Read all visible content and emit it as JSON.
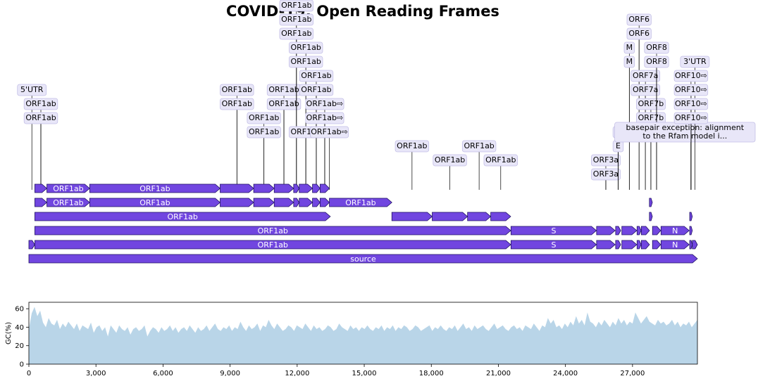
{
  "title": "COVID-19: Open Reading Frames",
  "colors": {
    "feature_fill": "#7146e0",
    "feature_stroke": "#1f1160",
    "label_box": "#e8e6f8",
    "label_box_stroke": "#c3bfe6",
    "gc_fill": "#b9d5e8"
  },
  "genome": {
    "start": 0,
    "end": 29903
  },
  "features": [
    {
      "label": "source",
      "start": 0,
      "end": 29903,
      "level": 0
    },
    {
      "label": "",
      "start": 0,
      "end": 265,
      "level": 1
    },
    {
      "label": "ORF1ab",
      "start": 266,
      "end": 21555,
      "level": 1
    },
    {
      "label": "S",
      "start": 21563,
      "end": 25384,
      "level": 1
    },
    {
      "label": "",
      "start": 25393,
      "end": 26220,
      "level": 1
    },
    {
      "label": "",
      "start": 26245,
      "end": 26472,
      "level": 1
    },
    {
      "label": "",
      "start": 26523,
      "end": 27191,
      "level": 1
    },
    {
      "label": "",
      "start": 27202,
      "end": 27387,
      "level": 1
    },
    {
      "label": "",
      "start": 27394,
      "end": 27759,
      "level": 1
    },
    {
      "label": "",
      "start": 27894,
      "end": 28259,
      "level": 1
    },
    {
      "label": "N",
      "start": 28274,
      "end": 29533,
      "level": 1
    },
    {
      "label": "",
      "start": 29558,
      "end": 29674,
      "level": 1
    },
    {
      "label": "",
      "start": 29675,
      "end": 29903,
      "level": 1
    },
    {
      "label": "ORF1ab",
      "start": 266,
      "end": 21555,
      "level": 2
    },
    {
      "label": "S",
      "start": 21563,
      "end": 25384,
      "level": 2
    },
    {
      "label": "",
      "start": 25393,
      "end": 26220,
      "level": 2
    },
    {
      "label": "",
      "start": 26245,
      "end": 26472,
      "level": 2
    },
    {
      "label": "",
      "start": 26523,
      "end": 27191,
      "level": 2
    },
    {
      "label": "",
      "start": 27202,
      "end": 27387,
      "level": 2
    },
    {
      "label": "",
      "start": 27394,
      "end": 27759,
      "level": 2
    },
    {
      "label": "",
      "start": 27894,
      "end": 28259,
      "level": 2
    },
    {
      "label": "N",
      "start": 28274,
      "end": 29533,
      "level": 2
    },
    {
      "label": "",
      "start": 29558,
      "end": 29674,
      "level": 2
    },
    {
      "label": "ORF1ab",
      "start": 266,
      "end": 13483,
      "level": 3
    },
    {
      "label": "",
      "start": 16236,
      "end": 18039,
      "level": 3
    },
    {
      "label": "",
      "start": 18040,
      "end": 19620,
      "level": 3
    },
    {
      "label": "",
      "start": 19621,
      "end": 20658,
      "level": 3
    },
    {
      "label": "",
      "start": 20659,
      "end": 21552,
      "level": 3
    },
    {
      "label": "",
      "start": 27756,
      "end": 27887,
      "level": 3
    },
    {
      "label": "",
      "start": 29558,
      "end": 29674,
      "level": 3
    },
    {
      "label": "",
      "start": 266,
      "end": 805,
      "level": 4
    },
    {
      "label": "ORF1ab",
      "start": 806,
      "end": 2719,
      "level": 4
    },
    {
      "label": "ORF1ab",
      "start": 2720,
      "end": 8554,
      "level": 4
    },
    {
      "label": "",
      "start": 8555,
      "end": 10054,
      "level": 4
    },
    {
      "label": "",
      "start": 10055,
      "end": 10972,
      "level": 4
    },
    {
      "label": "",
      "start": 10973,
      "end": 11842,
      "level": 4
    },
    {
      "label": "",
      "start": 11843,
      "end": 12091,
      "level": 4
    },
    {
      "label": "",
      "start": 12092,
      "end": 12685,
      "level": 4
    },
    {
      "label": "",
      "start": 12686,
      "end": 13024,
      "level": 4
    },
    {
      "label": "",
      "start": 13025,
      "end": 13441,
      "level": 4
    },
    {
      "label": "ORF1ab",
      "start": 13442,
      "end": 16236,
      "level": 4
    },
    {
      "label": "",
      "start": 27756,
      "end": 27887,
      "level": 4
    },
    {
      "label": "",
      "start": 266,
      "end": 805,
      "level": 5
    },
    {
      "label": "ORF1ab",
      "start": 806,
      "end": 2719,
      "level": 5
    },
    {
      "label": "ORF1ab",
      "start": 2720,
      "end": 8554,
      "level": 5
    },
    {
      "label": "",
      "start": 8555,
      "end": 10054,
      "level": 5
    },
    {
      "label": "",
      "start": 10055,
      "end": 10972,
      "level": 5
    },
    {
      "label": "",
      "start": 10973,
      "end": 11842,
      "level": 5
    },
    {
      "label": "",
      "start": 11843,
      "end": 12091,
      "level": 5
    },
    {
      "label": "",
      "start": 12092,
      "end": 12685,
      "level": 5
    },
    {
      "label": "",
      "start": 12686,
      "end": 13024,
      "level": 5
    },
    {
      "label": "",
      "start": 13025,
      "end": 13441,
      "level": 5
    }
  ],
  "labels": [
    {
      "text": "5'UTR",
      "pos": 133,
      "row": 7
    },
    {
      "text": "ORF1ab",
      "pos": 536,
      "row": 6
    },
    {
      "text": "ORF1ab",
      "pos": 536,
      "row": 5
    },
    {
      "text": "ORF1ab",
      "pos": 9305,
      "row": 7
    },
    {
      "text": "ORF1ab",
      "pos": 9305,
      "row": 6
    },
    {
      "text": "ORF1ab",
      "pos": 10514,
      "row": 5
    },
    {
      "text": "ORF1ab",
      "pos": 10514,
      "row": 4
    },
    {
      "text": "ORF1ab",
      "pos": 11408,
      "row": 7
    },
    {
      "text": "ORF1ab",
      "pos": 11408,
      "row": 6
    },
    {
      "text": "ORF1ab",
      "pos": 11967,
      "row": 13
    },
    {
      "text": "ORF1ab",
      "pos": 11967,
      "row": 12
    },
    {
      "text": "ORF1ab",
      "pos": 11967,
      "row": 11
    },
    {
      "text": "ORF1ab",
      "pos": 12389,
      "row": 10
    },
    {
      "text": "ORF1ab",
      "pos": 12389,
      "row": 9
    },
    {
      "text": "ORF1ab",
      "pos": 12389,
      "row": 4
    },
    {
      "text": "ORF1ab",
      "pos": 12855,
      "row": 8
    },
    {
      "text": "ORF1ab",
      "pos": 12855,
      "row": 7
    },
    {
      "text": "ORF1ab⇨",
      "pos": 13233,
      "row": 6
    },
    {
      "text": "ORF1ab⇨",
      "pos": 13233,
      "row": 5
    },
    {
      "text": "ORF1ab⇨",
      "pos": 13441,
      "row": 4
    },
    {
      "text": "ORF1ab",
      "pos": 17137,
      "row": 3
    },
    {
      "text": "ORF1ab",
      "pos": 18830,
      "row": 2
    },
    {
      "text": "ORF1ab",
      "pos": 20139,
      "row": 3
    },
    {
      "text": "ORF1ab",
      "pos": 21105,
      "row": 2
    },
    {
      "text": "ORF3a",
      "pos": 25806,
      "row": 2
    },
    {
      "text": "ORF3a",
      "pos": 25806,
      "row": 1
    },
    {
      "text": "E",
      "pos": 26358,
      "row": 4
    },
    {
      "text": "E",
      "pos": 26358,
      "row": 3
    },
    {
      "text": "M",
      "pos": 26857,
      "row": 10
    },
    {
      "text": "M",
      "pos": 26857,
      "row": 9
    },
    {
      "text": "ORF6",
      "pos": 27294,
      "row": 12
    },
    {
      "text": "ORF6",
      "pos": 27294,
      "row": 11
    },
    {
      "text": "ORF7a",
      "pos": 27576,
      "row": 8
    },
    {
      "text": "ORF7a",
      "pos": 27576,
      "row": 7
    },
    {
      "text": "ORF7b",
      "pos": 27821,
      "row": 6
    },
    {
      "text": "ORF7b",
      "pos": 27821,
      "row": 5
    },
    {
      "text": "ORF8",
      "pos": 28076,
      "row": 10
    },
    {
      "text": "ORF8",
      "pos": 28076,
      "row": 9
    },
    {
      "text": "basepair exception: alignment\nto the Rfam model i...",
      "pos": 29609,
      "row": 4
    },
    {
      "text": "3'UTR",
      "pos": 29789,
      "row": 9
    },
    {
      "text": "ORF10⇨",
      "pos": 29616,
      "row": 8
    },
    {
      "text": "ORF10⇨",
      "pos": 29616,
      "row": 7
    },
    {
      "text": "ORF10⇨",
      "pos": 29616,
      "row": 6
    },
    {
      "text": "ORF10⇨",
      "pos": 29616,
      "row": 5
    }
  ],
  "gc_axis": {
    "ylabel": "GC(%)",
    "yticks": [
      "0",
      "20",
      "40",
      "60"
    ],
    "ymax": 67,
    "xticks": [
      "0",
      "3,000",
      "6,000",
      "9,000",
      "12,000",
      "15,000",
      "18,000",
      "21,000",
      "24,000",
      "27,000"
    ],
    "xtick_values": [
      0,
      3000,
      6000,
      9000,
      12000,
      15000,
      18000,
      21000,
      24000,
      27000
    ]
  },
  "gc_profile": [
    38,
    55,
    62,
    52,
    58,
    45,
    40,
    50,
    44,
    42,
    48,
    38,
    44,
    40,
    46,
    42,
    38,
    44,
    36,
    42,
    40,
    38,
    45,
    34,
    40,
    42,
    36,
    40,
    30,
    42,
    38,
    34,
    42,
    38,
    36,
    40,
    32,
    38,
    40,
    36,
    38,
    42,
    30,
    36,
    40,
    38,
    34,
    40,
    36,
    38,
    42,
    36,
    40,
    34,
    38,
    40,
    36,
    42,
    38,
    34,
    40,
    36,
    38,
    42,
    36,
    40,
    44,
    38,
    36,
    40,
    38,
    42,
    36,
    40,
    38,
    46,
    40,
    36,
    42,
    38,
    40,
    44,
    36,
    42,
    40,
    48,
    42,
    38,
    44,
    40,
    36,
    38,
    42,
    40,
    36,
    42,
    40,
    38,
    44,
    40,
    36,
    42,
    38,
    40,
    36,
    38,
    42,
    40,
    36,
    38,
    44,
    40,
    38,
    36,
    42,
    38,
    40,
    36,
    40,
    38,
    42,
    38,
    36,
    40,
    38,
    42,
    36,
    40,
    38,
    42,
    36,
    40,
    38,
    42,
    40,
    36,
    38,
    42,
    40,
    36,
    38,
    40,
    42,
    36,
    40,
    38,
    42,
    38,
    36,
    40,
    38,
    42,
    36,
    40,
    44,
    38,
    40,
    36,
    42,
    38,
    40,
    42,
    38,
    36,
    40,
    44,
    38,
    40,
    42,
    38,
    36,
    40,
    42,
    38,
    40,
    36,
    42,
    40,
    38,
    44,
    40,
    36,
    42,
    40,
    50,
    44,
    48,
    40,
    42,
    38,
    44,
    40,
    46,
    42,
    52,
    44,
    48,
    42,
    56,
    46,
    44,
    40,
    46,
    42,
    48,
    44,
    40,
    46,
    42,
    50,
    44,
    48,
    42,
    46,
    44,
    56,
    50,
    44,
    48,
    52,
    46,
    44,
    42,
    48,
    44,
    46,
    42,
    44,
    48,
    42,
    46,
    40,
    44,
    42,
    46,
    40,
    44,
    48
  ]
}
